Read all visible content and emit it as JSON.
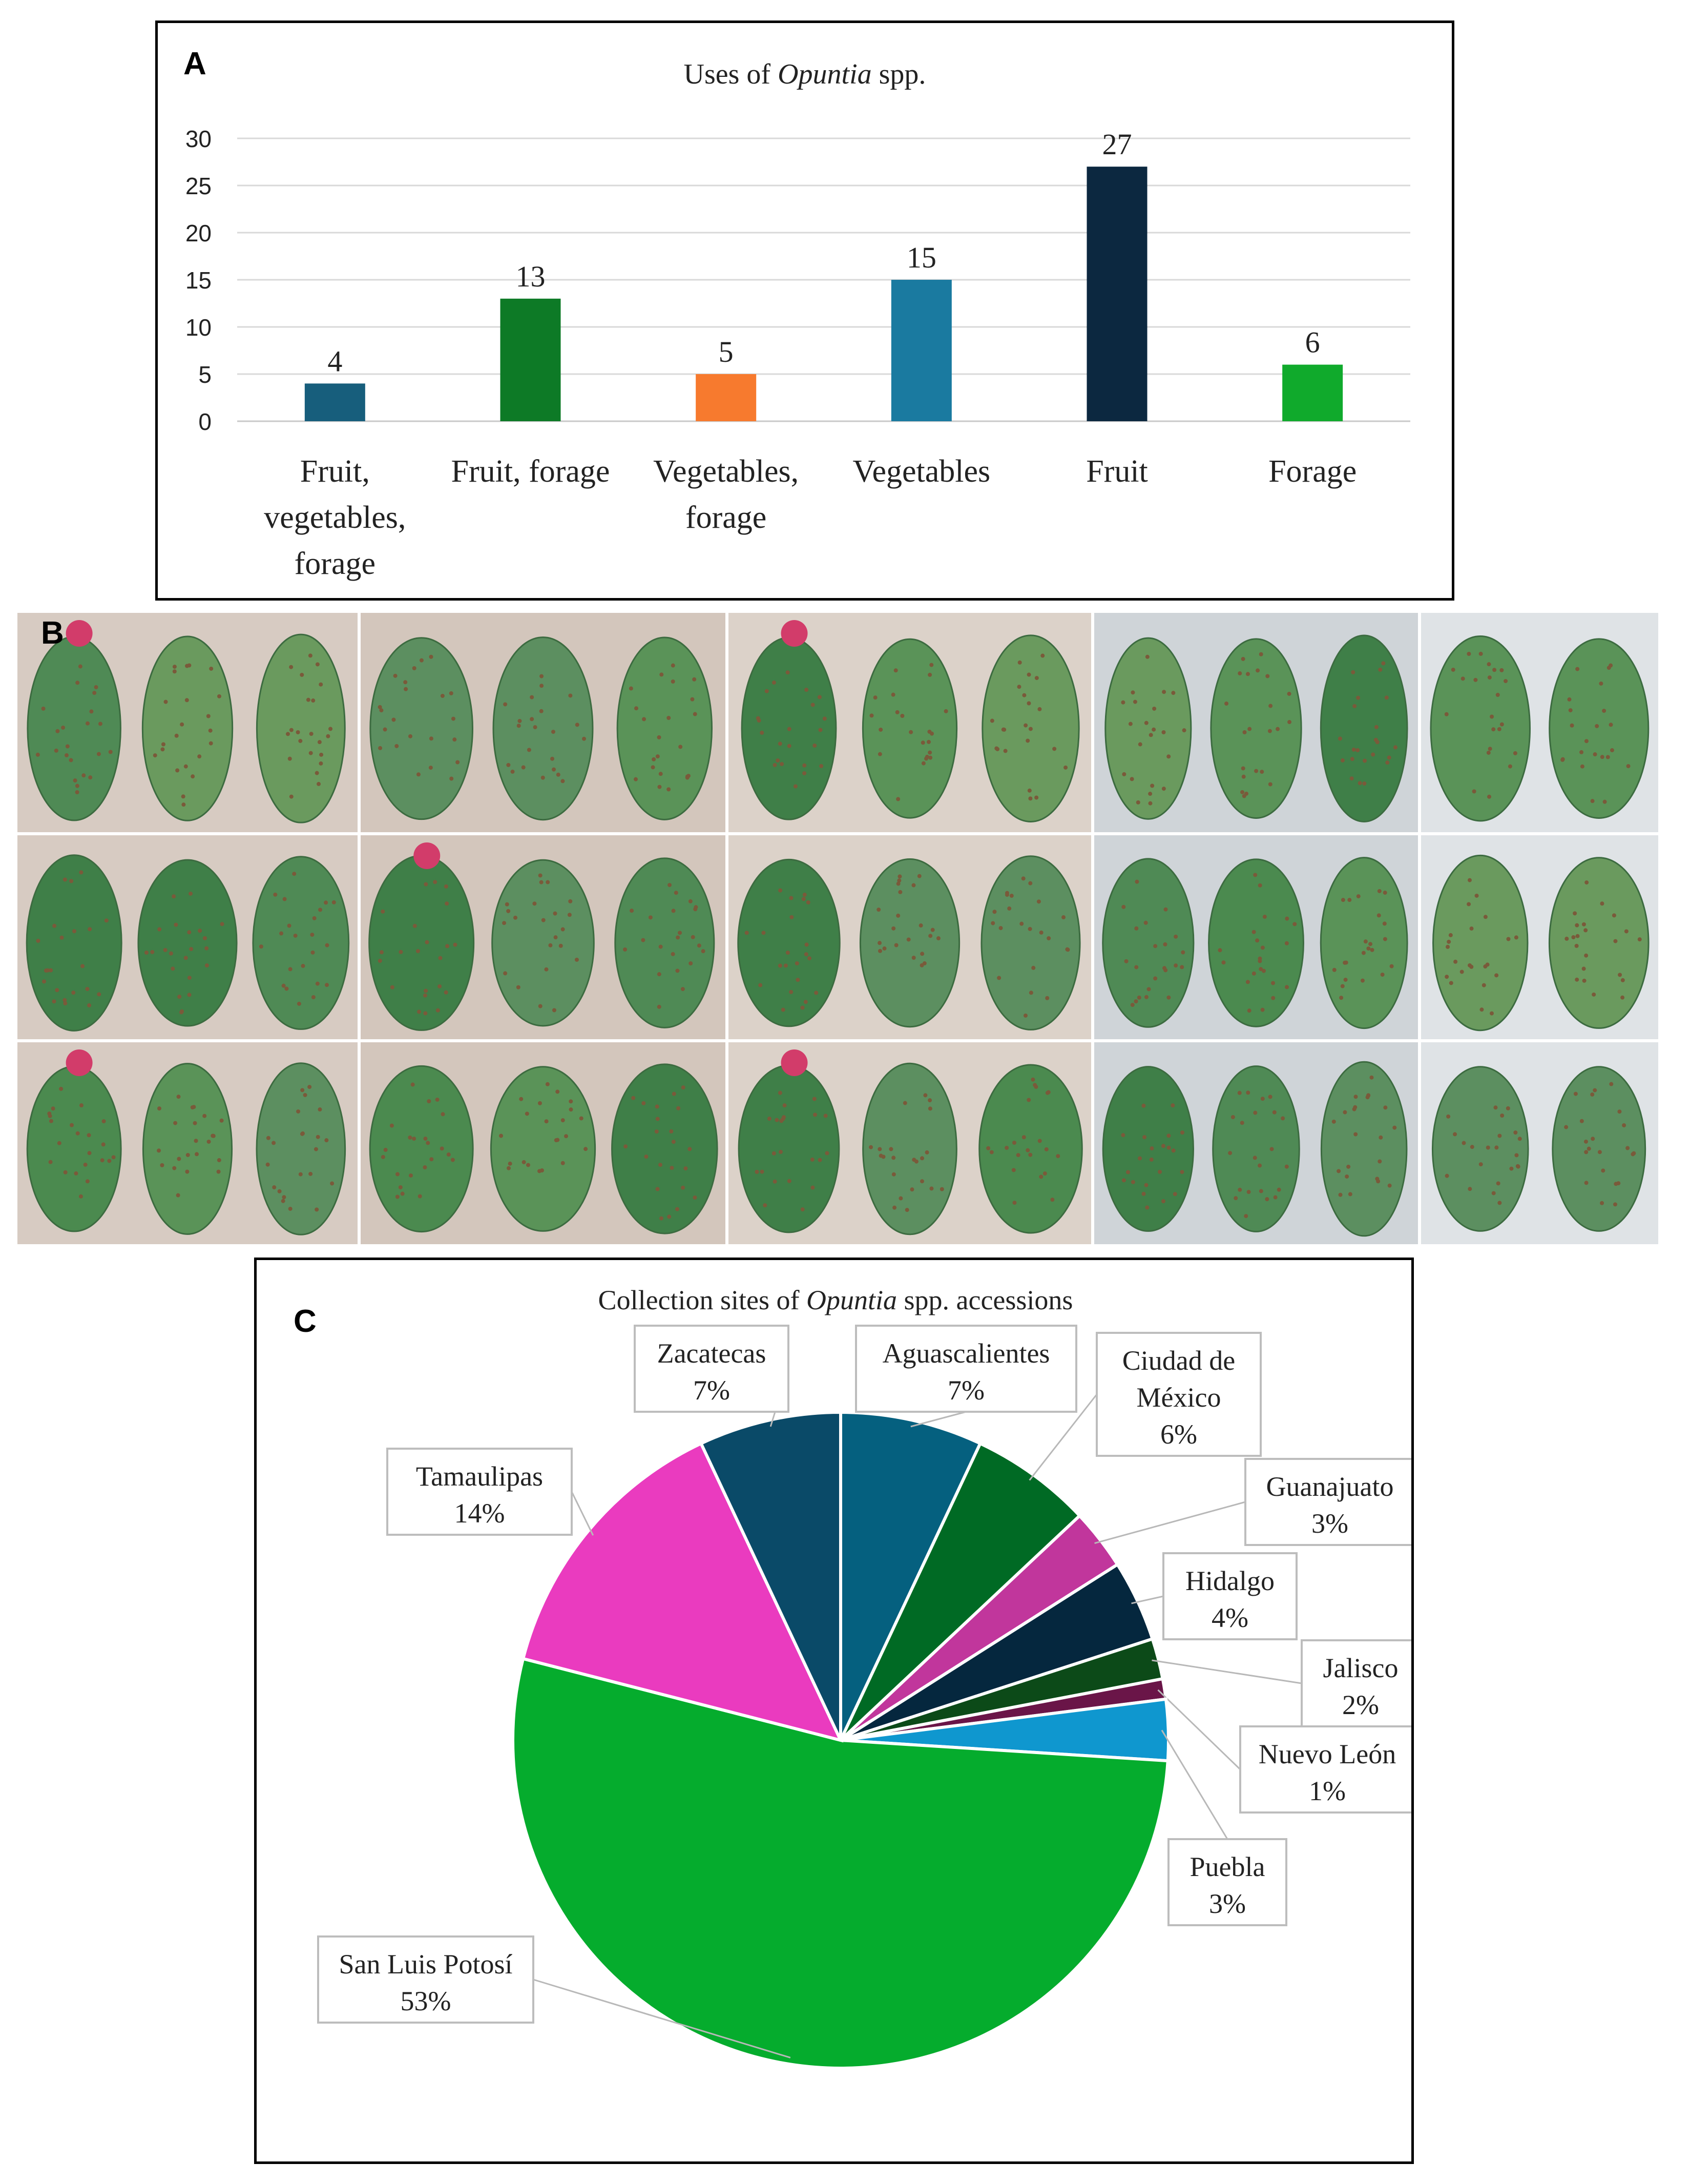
{
  "panel_labels": {
    "a": "A",
    "b": "B",
    "c": "C"
  },
  "chart_data": [
    {
      "type": "bar",
      "title_prefix": "Uses of ",
      "title_italic": "Opuntia",
      "title_suffix": " spp.",
      "categories": [
        "Fruit, vegetables, forage",
        "Fruit, forage",
        "Vegetables, forage",
        "Vegetables",
        "Fruit",
        "Forage"
      ],
      "category_lines": [
        [
          "Fruit,",
          "vegetables,",
          "forage"
        ],
        [
          "Fruit, forage"
        ],
        [
          "Vegetables,",
          "forage"
        ],
        [
          "Vegetables"
        ],
        [
          "Fruit"
        ],
        [
          "Forage"
        ]
      ],
      "values": [
        4,
        13,
        5,
        15,
        27,
        6
      ],
      "colors": [
        "#175e7c",
        "#0d7a26",
        "#f77a2e",
        "#1a7aa0",
        "#0c2840",
        "#10aa2c"
      ],
      "yticks": [
        0,
        5,
        10,
        15,
        20,
        25,
        30
      ],
      "ylim": [
        0,
        30
      ],
      "xlabel": "",
      "ylabel": "",
      "grid": true
    },
    {
      "type": "pie",
      "title_prefix": "Collection sites of ",
      "title_italic": "Opuntia",
      "title_suffix": " spp. accessions",
      "slices": [
        {
          "label": "Aguascalientes",
          "lines": [
            "Aguascalientes"
          ],
          "percent": 7,
          "pct_label": "7%",
          "color": "#05607f"
        },
        {
          "label": "Ciudad de México",
          "lines": [
            "Ciudad de",
            "México"
          ],
          "percent": 6,
          "pct_label": "6%",
          "color": "#006a24"
        },
        {
          "label": "Guanajuato",
          "lines": [
            "Guanajuato"
          ],
          "percent": 3,
          "pct_label": "3%",
          "color": "#c1369c"
        },
        {
          "label": "Hidalgo",
          "lines": [
            "Hidalgo"
          ],
          "percent": 4,
          "pct_label": "4%",
          "color": "#05273e"
        },
        {
          "label": "Jalisco",
          "lines": [
            "Jalisco"
          ],
          "percent": 2,
          "pct_label": "2%",
          "color": "#0c4a18"
        },
        {
          "label": "Nuevo León",
          "lines": [
            "Nuevo León"
          ],
          "percent": 1,
          "pct_label": "1%",
          "color": "#6a1548"
        },
        {
          "label": "Puebla",
          "lines": [
            "Puebla"
          ],
          "percent": 3,
          "pct_label": "3%",
          "color": "#0f97cf"
        },
        {
          "label": "San Luis Potosí",
          "lines": [
            "San Luis Potosí"
          ],
          "percent": 53,
          "pct_label": "53%",
          "color": "#05ac2d"
        },
        {
          "label": "Tamaulipas",
          "lines": [
            "Tamaulipas"
          ],
          "percent": 14,
          "pct_label": "14%",
          "color": "#ea3bbf"
        },
        {
          "label": "Zacatecas",
          "lines": [
            "Zacatecas"
          ],
          "percent": 7,
          "pct_label": "7%",
          "color": "#0a4a68"
        }
      ]
    }
  ],
  "photos": {
    "caption_hint": "Cladode photographs of Opuntia accessions",
    "count": 15
  }
}
